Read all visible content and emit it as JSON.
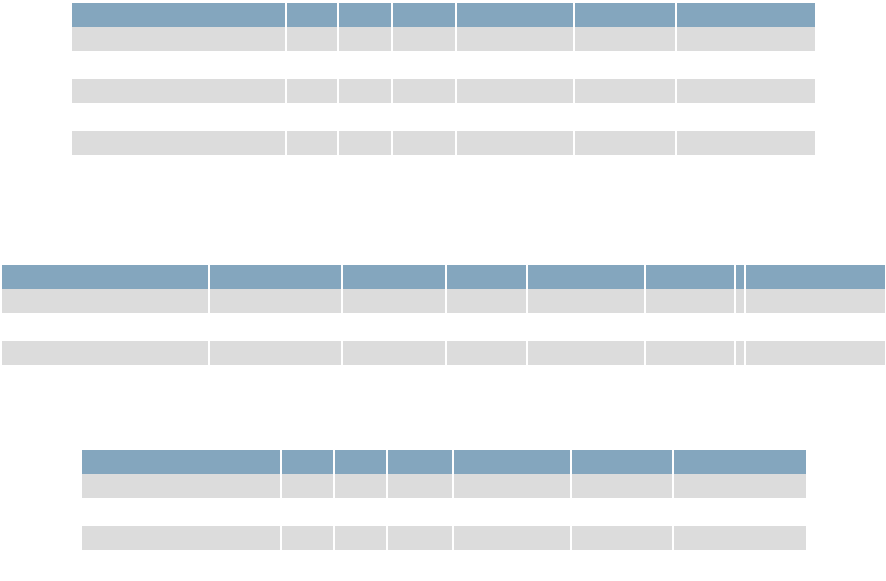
{
  "tables": [
    {
      "id": "t1",
      "rows": [
        {
          "type": "header",
          "cells": [
            "",
            "",
            "",
            "",
            "",
            "",
            ""
          ]
        },
        {
          "type": "shaded",
          "cells": [
            "",
            "",
            "",
            "",
            "",
            "",
            ""
          ]
        },
        {
          "type": "plain",
          "cells": [
            "",
            "",
            "",
            "",
            "",
            "",
            ""
          ]
        },
        {
          "type": "shaded",
          "cells": [
            "",
            "",
            "",
            "",
            "",
            "",
            ""
          ]
        },
        {
          "type": "plain",
          "cells": [
            "",
            "",
            "",
            "",
            "",
            "",
            ""
          ]
        },
        {
          "type": "shaded",
          "cells": [
            "",
            "",
            "",
            "",
            "",
            "",
            ""
          ]
        }
      ]
    },
    {
      "id": "t2",
      "rows": [
        {
          "type": "header",
          "cells": [
            "",
            "",
            "",
            "",
            "",
            "",
            "",
            ""
          ]
        },
        {
          "type": "shaded",
          "cells": [
            "",
            "",
            "",
            "",
            "",
            "",
            "",
            ""
          ]
        },
        {
          "type": "plain",
          "cells": [
            "",
            "",
            "",
            "",
            "",
            "",
            "",
            ""
          ]
        },
        {
          "type": "shaded",
          "cells": [
            "",
            "",
            "",
            "",
            "",
            "",
            "",
            ""
          ]
        }
      ]
    },
    {
      "id": "t3",
      "rows": [
        {
          "type": "header",
          "cells": [
            "",
            "",
            "",
            "",
            "",
            "",
            ""
          ]
        },
        {
          "type": "shaded",
          "cells": [
            "",
            "",
            "",
            "",
            "",
            "",
            ""
          ]
        },
        {
          "type": "plain",
          "cells": [
            "",
            "",
            "",
            "",
            "",
            "",
            ""
          ]
        },
        {
          "type": "shaded",
          "cells": [
            "",
            "",
            "",
            "",
            "",
            "",
            ""
          ]
        }
      ]
    }
  ],
  "colors": {
    "header": "#84a6be",
    "shaded_row": "#dcdcdc",
    "plain_row": "#ffffff"
  }
}
